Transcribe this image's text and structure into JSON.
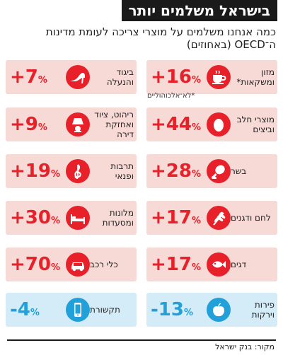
{
  "title": "בישראל משלמים יותר",
  "subtitle": "כמה אנחנו משלמים על מוצרי צריכה לעומת מדינות ה־OECD (באחוזים)",
  "footnote": "*לא־אלכוהוליים",
  "source": "מקור: בנק ישראל",
  "colors": {
    "increase": "#e8202a",
    "decrease": "#21a0da",
    "increase_bg": "#f7d9d5",
    "decrease_bg": "#d4ecf7"
  },
  "chart_data": {
    "type": "table",
    "unit": "%",
    "items": [
      {
        "label": "מזון ומשקאות*",
        "display": "+16",
        "value": 16,
        "icon": "coffee-cup-icon",
        "column": "right",
        "row": 0
      },
      {
        "label": "ביגוד והנעלה",
        "display": "+7",
        "value": 7,
        "icon": "high-heel-icon",
        "column": "left",
        "row": 0
      },
      {
        "label": "מוצרי חלב וביצים",
        "display": "+44",
        "value": 44,
        "icon": "egg-icon",
        "column": "right",
        "row": 1
      },
      {
        "label": "ריהוט, ציוד ואחזקת דירה",
        "display": "+9",
        "value": 9,
        "icon": "lamp-icon",
        "column": "left",
        "row": 1
      },
      {
        "label": "בשר",
        "display": "+28",
        "value": 28,
        "icon": "meat-drumstick-icon",
        "column": "right",
        "row": 2
      },
      {
        "label": "תרבות ופנאי",
        "display": "+19",
        "value": 19,
        "icon": "treble-clef-icon",
        "column": "left",
        "row": 2
      },
      {
        "label": "לחם ודגנים",
        "display": "+17",
        "value": 17,
        "icon": "wheat-icon",
        "column": "right",
        "row": 3
      },
      {
        "label": "מלונות ומסעדות",
        "display": "+30",
        "value": 30,
        "icon": "bed-icon",
        "column": "left",
        "row": 3
      },
      {
        "label": "דגים",
        "display": "+17",
        "value": 17,
        "icon": "fish-icon",
        "column": "right",
        "row": 4
      },
      {
        "label": "כלי רכב",
        "display": "+70",
        "value": 70,
        "icon": "car-icon",
        "column": "left",
        "row": 4
      },
      {
        "label": "פירות וירקות",
        "display": "-13",
        "value": -13,
        "icon": "apple-icon",
        "column": "right",
        "row": 5
      },
      {
        "label": "תקשורת",
        "display": "-4",
        "value": -4,
        "icon": "smartphone-icon",
        "column": "left",
        "row": 5
      }
    ]
  }
}
